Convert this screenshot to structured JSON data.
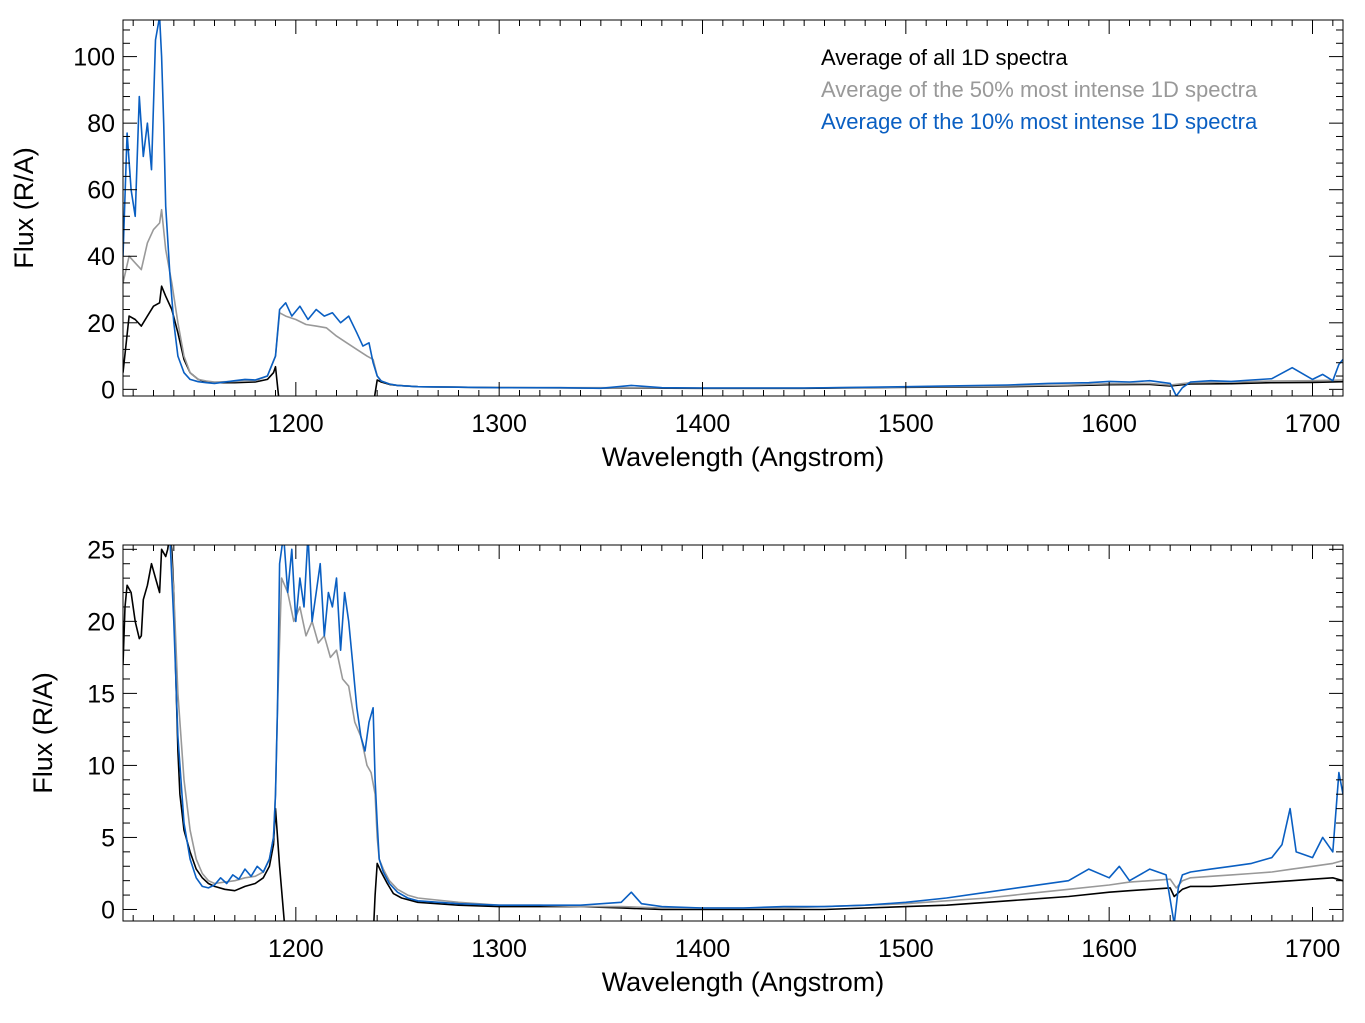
{
  "colors": {
    "all": "#000000",
    "p50": "#999999",
    "p10": "#0a5fc2",
    "axis": "#000000"
  },
  "chart_data": [
    {
      "type": "line",
      "xlabel": "Wavelength (Angstrom)",
      "ylabel": "Flux (R/A)",
      "xlim": [
        1115,
        1715
      ],
      "ylim": [
        -2,
        111
      ],
      "xticks": [
        1200,
        1300,
        1400,
        1500,
        1600,
        1700
      ],
      "yticks": [
        0,
        20,
        40,
        60,
        80,
        100
      ],
      "legend": "top-right",
      "series": [
        {
          "name": "Average of all 1D spectra",
          "color": "#000000",
          "x": [
            1115,
            1118,
            1121,
            1124,
            1127,
            1130,
            1133,
            1134,
            1136,
            1139,
            1142,
            1145,
            1148,
            1152,
            1156,
            1160,
            1170,
            1180,
            1186,
            1189,
            1190,
            1192,
            1200,
            1230,
            1238,
            1240,
            1242,
            1246,
            1250,
            1260,
            1300,
            1350,
            1400,
            1450,
            1500,
            1550,
            1580,
            1600,
            1620,
            1630,
            1640,
            1660,
            1680,
            1700,
            1715
          ],
          "y": [
            5,
            22,
            21,
            19,
            22,
            25,
            26,
            31,
            28,
            24,
            17,
            9,
            5,
            3,
            2.2,
            2,
            2,
            2.2,
            3,
            5,
            6.8,
            -5,
            -5,
            -5,
            -5,
            2.8,
            2.2,
            1.5,
            1.2,
            0.8,
            0.5,
            0.4,
            0.3,
            0.3,
            0.6,
            0.8,
            1.1,
            1.4,
            1.5,
            1,
            1.6,
            1.7,
            2,
            2.1,
            2.3
          ]
        },
        {
          "name": "Average of the 50% most intense 1D spectra",
          "color": "#999999",
          "x": [
            1115,
            1118,
            1121,
            1124,
            1127,
            1130,
            1133,
            1134,
            1136,
            1139,
            1142,
            1145,
            1148,
            1152,
            1156,
            1160,
            1170,
            1180,
            1186,
            1190,
            1192,
            1195,
            1200,
            1205,
            1210,
            1215,
            1220,
            1225,
            1230,
            1235,
            1238,
            1240,
            1242,
            1246,
            1250,
            1260,
            1300,
            1350,
            1400,
            1450,
            1500,
            1550,
            1580,
            1600,
            1620,
            1630,
            1640,
            1660,
            1680,
            1700,
            1715
          ],
          "y": [
            32,
            40,
            38,
            36,
            44,
            48,
            50,
            54,
            42,
            32,
            20,
            10,
            5,
            3,
            2.5,
            2.2,
            2.4,
            2.6,
            4,
            10,
            23,
            22,
            21,
            19.5,
            19,
            18.5,
            16,
            14,
            12,
            10,
            9,
            4,
            2.5,
            1.6,
            1.2,
            0.8,
            0.5,
            0.5,
            0.4,
            0.4,
            0.7,
            1,
            1.3,
            1.7,
            1.8,
            1.3,
            2,
            2.2,
            2.5,
            2.6,
            2.8
          ]
        },
        {
          "name": "Average of the 10% most intense 1D spectra",
          "color": "#0a5fc2",
          "x": [
            1115,
            1117,
            1119,
            1121,
            1123,
            1125,
            1127,
            1129,
            1131,
            1133,
            1134,
            1135,
            1136,
            1138,
            1140,
            1142,
            1145,
            1148,
            1152,
            1156,
            1160,
            1170,
            1175,
            1180,
            1186,
            1190,
            1192,
            1195,
            1198,
            1202,
            1206,
            1210,
            1214,
            1218,
            1222,
            1226,
            1230,
            1233,
            1236,
            1238,
            1240,
            1242,
            1246,
            1250,
            1260,
            1300,
            1330,
            1350,
            1365,
            1380,
            1400,
            1450,
            1500,
            1530,
            1550,
            1570,
            1590,
            1600,
            1610,
            1620,
            1630,
            1633,
            1636,
            1640,
            1650,
            1660,
            1670,
            1680,
            1690,
            1700,
            1705,
            1710,
            1713,
            1715
          ],
          "y": [
            40,
            77,
            60,
            52,
            88,
            70,
            80,
            66,
            105,
            112,
            100,
            80,
            55,
            35,
            20,
            10,
            5,
            3,
            2.3,
            2,
            1.8,
            2.6,
            3,
            2.8,
            4,
            10,
            24,
            26,
            22,
            25,
            21,
            24,
            22,
            23,
            20,
            22,
            17,
            13,
            14,
            8,
            4,
            2.5,
            1.6,
            1.2,
            0.8,
            0.5,
            0.5,
            0.3,
            1.2,
            0.5,
            0.4,
            0.4,
            0.8,
            1.1,
            1.3,
            1.8,
            2,
            2.4,
            2.2,
            2.6,
            1.8,
            -2,
            0.5,
            2.2,
            2.6,
            2.4,
            2.8,
            3.2,
            6.5,
            3,
            4.5,
            2.6,
            7.5,
            9
          ]
        }
      ]
    },
    {
      "type": "line",
      "xlabel": "Wavelength (Angstrom)",
      "ylabel": "Flux (R/A)",
      "xlim": [
        1115,
        1715
      ],
      "ylim": [
        -0.8,
        25.3
      ],
      "xticks": [
        1200,
        1300,
        1400,
        1500,
        1600,
        1700
      ],
      "yticks": [
        0,
        5,
        10,
        15,
        20,
        25
      ],
      "series": [
        {
          "name": "Average of all 1D spectra",
          "color": "#000000",
          "x": [
            1115,
            1116,
            1117,
            1119,
            1121,
            1123,
            1124,
            1125,
            1127,
            1129,
            1131,
            1133,
            1134,
            1136,
            1137,
            1138,
            1139,
            1140,
            1141,
            1142,
            1143,
            1145,
            1148,
            1151,
            1154,
            1157,
            1160,
            1165,
            1170,
            1175,
            1180,
            1184,
            1187,
            1189,
            1190,
            1192,
            1195,
            1200,
            1220,
            1238,
            1239,
            1240,
            1242,
            1245,
            1248,
            1252,
            1260,
            1280,
            1300,
            1320,
            1340,
            1360,
            1380,
            1400,
            1420,
            1440,
            1460,
            1480,
            1500,
            1520,
            1540,
            1560,
            1580,
            1600,
            1610,
            1620,
            1630,
            1632,
            1636,
            1640,
            1650,
            1660,
            1670,
            1680,
            1690,
            1700,
            1710,
            1715
          ],
          "y": [
            17,
            21,
            22.5,
            22,
            20,
            18.8,
            19,
            21.5,
            22.5,
            24,
            23,
            22,
            25,
            24.5,
            25,
            26,
            25,
            22,
            16,
            11,
            8,
            5.5,
            4,
            2.8,
            2.2,
            1.8,
            1.6,
            1.4,
            1.3,
            1.6,
            1.8,
            2.2,
            3,
            4.5,
            7,
            3,
            -2,
            -2,
            -2,
            -2,
            1,
            3.2,
            2.6,
            1.8,
            1.1,
            0.8,
            0.5,
            0.3,
            0.2,
            0.2,
            0.2,
            0.1,
            0,
            0,
            0,
            0,
            0,
            0.1,
            0.2,
            0.3,
            0.5,
            0.7,
            0.9,
            1.2,
            1.3,
            1.4,
            1.5,
            0.9,
            1.4,
            1.6,
            1.6,
            1.7,
            1.8,
            1.9,
            2,
            2.1,
            2.2,
            2
          ]
        },
        {
          "name": "Average of the 50% most intense 1D spectra",
          "color": "#999999",
          "x": [
            1138,
            1140,
            1142,
            1145,
            1148,
            1151,
            1154,
            1157,
            1160,
            1165,
            1170,
            1175,
            1180,
            1184,
            1187,
            1189,
            1190,
            1191,
            1193,
            1196,
            1199,
            1202,
            1205,
            1208,
            1211,
            1214,
            1217,
            1220,
            1223,
            1226,
            1229,
            1232,
            1235,
            1237,
            1239,
            1240,
            1241,
            1243,
            1246,
            1250,
            1255,
            1260,
            1280,
            1300,
            1320,
            1340,
            1360,
            1380,
            1400,
            1420,
            1440,
            1460,
            1480,
            1500,
            1520,
            1540,
            1560,
            1580,
            1600,
            1610,
            1620,
            1630,
            1633,
            1636,
            1640,
            1650,
            1660,
            1670,
            1680,
            1690,
            1700,
            1710,
            1715
          ],
          "y": [
            26,
            22,
            15,
            9,
            5.5,
            3.5,
            2.5,
            2,
            1.8,
            1.9,
            2,
            2.2,
            2.3,
            2.6,
            3.5,
            5,
            8,
            14,
            23,
            22,
            20,
            21,
            19,
            20,
            18.5,
            19,
            17.5,
            18,
            16,
            15.5,
            13,
            12,
            10,
            9.5,
            8,
            5,
            3.5,
            2.8,
            2,
            1.4,
            1,
            0.8,
            0.5,
            0.3,
            0.3,
            0.2,
            0.2,
            0.1,
            0.1,
            0.1,
            0.1,
            0.2,
            0.3,
            0.4,
            0.6,
            0.8,
            1.1,
            1.4,
            1.7,
            1.9,
            2,
            2.1,
            1.5,
            2,
            2.2,
            2.3,
            2.4,
            2.5,
            2.6,
            2.8,
            3,
            3.2,
            3.4
          ]
        },
        {
          "name": "Average of the 10% most intense 1D spectra",
          "color": "#0a5fc2",
          "x": [
            1138,
            1140,
            1142,
            1145,
            1148,
            1151,
            1154,
            1157,
            1160,
            1163,
            1166,
            1169,
            1172,
            1175,
            1178,
            1181,
            1184,
            1187,
            1189,
            1190,
            1191,
            1192,
            1194,
            1196,
            1198,
            1200,
            1202,
            1204,
            1206,
            1208,
            1210,
            1212,
            1214,
            1216,
            1218,
            1220,
            1222,
            1224,
            1226,
            1228,
            1230,
            1232,
            1234,
            1236,
            1238,
            1239,
            1240,
            1241,
            1243,
            1246,
            1250,
            1255,
            1260,
            1280,
            1300,
            1320,
            1340,
            1360,
            1365,
            1370,
            1380,
            1400,
            1420,
            1440,
            1460,
            1480,
            1500,
            1520,
            1540,
            1560,
            1580,
            1590,
            1600,
            1605,
            1610,
            1620,
            1628,
            1632,
            1634,
            1636,
            1640,
            1650,
            1660,
            1670,
            1680,
            1685,
            1689,
            1692,
            1696,
            1700,
            1705,
            1710,
            1713,
            1715
          ],
          "y": [
            26,
            20,
            12,
            6,
            3.5,
            2.2,
            1.6,
            1.5,
            1.7,
            2.2,
            1.8,
            2.4,
            2.1,
            2.8,
            2.3,
            3,
            2.6,
            3.5,
            5,
            8,
            14,
            24,
            26,
            22,
            25,
            20,
            23,
            21,
            26,
            20,
            22,
            24,
            19,
            22,
            21,
            23,
            18,
            22,
            20,
            17,
            14,
            12,
            11,
            13,
            14,
            9,
            6,
            3.5,
            2.6,
            1.8,
            1.2,
            0.8,
            0.6,
            0.4,
            0.3,
            0.3,
            0.3,
            0.5,
            1.2,
            0.4,
            0.2,
            0.1,
            0.1,
            0.2,
            0.2,
            0.3,
            0.5,
            0.8,
            1.2,
            1.6,
            2,
            2.8,
            2.2,
            3,
            2,
            2.8,
            2.4,
            -1,
            1.5,
            2.4,
            2.6,
            2.8,
            3,
            3.2,
            3.6,
            4.5,
            7,
            4,
            3.8,
            3.6,
            5,
            4,
            9.5,
            8
          ]
        }
      ]
    }
  ]
}
